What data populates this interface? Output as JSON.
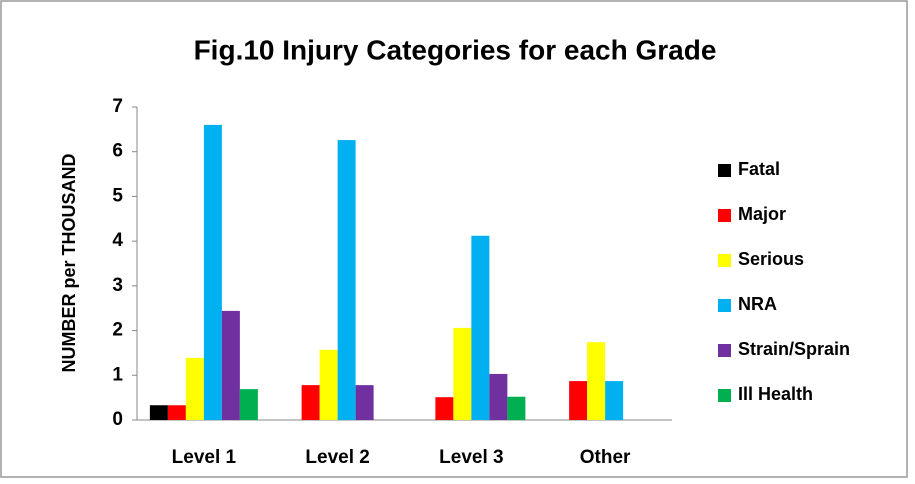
{
  "chart_data": {
    "type": "bar",
    "title": "Fig.10  Injury Categories for each Grade",
    "y_label": "NUMBER per THOUSAND",
    "categories": [
      "Level 1",
      "Level 2",
      "Level 3",
      "Other"
    ],
    "series": [
      {
        "name": "Fatal",
        "color": "#000000",
        "values": [
          0.33,
          0,
          0,
          0
        ]
      },
      {
        "name": "Major",
        "color": "#ff0000",
        "values": [
          0.33,
          0.78,
          0.51,
          0.87
        ]
      },
      {
        "name": "Serious",
        "color": "#ffff00",
        "values": [
          1.39,
          1.57,
          2.06,
          1.74
        ]
      },
      {
        "name": "NRA",
        "color": "#00b0f0",
        "values": [
          6.6,
          6.26,
          4.12,
          0.87
        ]
      },
      {
        "name": "Strain/Sprain",
        "color": "#7030a0",
        "values": [
          2.44,
          0.78,
          1.03,
          0
        ]
      },
      {
        "name": "Ill Health",
        "color": "#00b050",
        "values": [
          0.69,
          0,
          0.52,
          0
        ]
      }
    ],
    "ylim": [
      0,
      7
    ],
    "yticks": [
      0,
      1,
      2,
      3,
      4,
      5,
      6,
      7
    ],
    "grid": false,
    "legend": "right"
  }
}
